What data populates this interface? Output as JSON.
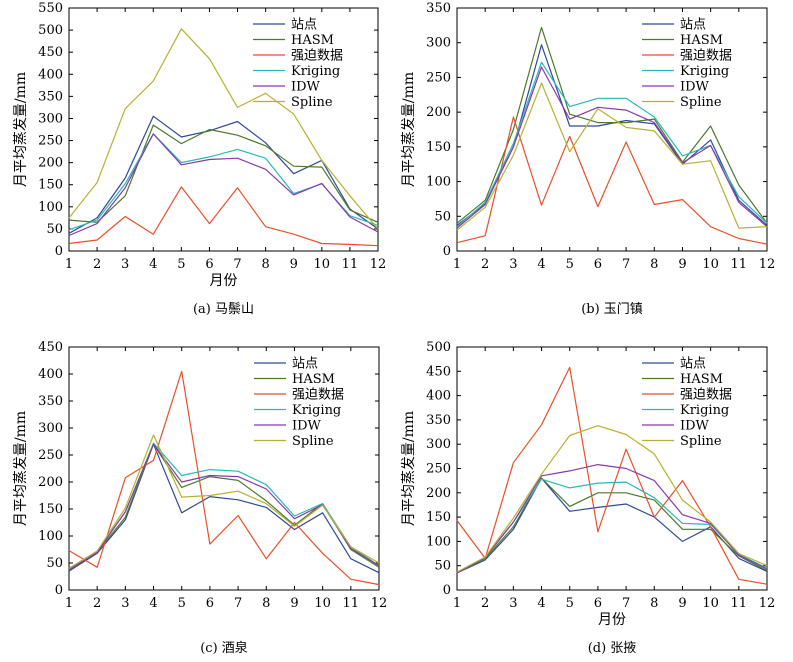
{
  "figure": {
    "colors": {
      "站点": "#2f4a9a",
      "HASM": "#4a7a2a",
      "强迫数据": "#e8502a",
      "Kriging": "#2ab8b8",
      "IDW": "#8a3aa8",
      "Spline": "#b8b030"
    }
  },
  "chart_data": [
    {
      "type": "line",
      "caption": "(a) 马鬃山",
      "xlabel": "月份",
      "ylabel": "月平均蒸发量/mm",
      "x": [
        1,
        2,
        3,
        4,
        5,
        6,
        7,
        8,
        9,
        10,
        11,
        12
      ],
      "xlim": [
        1,
        12
      ],
      "ylim": [
        0,
        550
      ],
      "yticks": [
        0,
        50,
        100,
        150,
        200,
        250,
        300,
        350,
        400,
        450,
        500,
        550
      ],
      "legend_position": "top-right",
      "series": [
        {
          "name": "站点",
          "values": [
            40,
            75,
            165,
            305,
            258,
            272,
            293,
            245,
            175,
            205,
            95,
            50
          ]
        },
        {
          "name": "HASM",
          "values": [
            70,
            65,
            125,
            285,
            243,
            275,
            262,
            238,
            192,
            190,
            93,
            65
          ]
        },
        {
          "name": "强迫数据",
          "values": [
            17,
            25,
            78,
            38,
            145,
            62,
            143,
            55,
            38,
            17,
            15,
            12
          ]
        },
        {
          "name": "Kriging",
          "values": [
            48,
            70,
            152,
            265,
            200,
            213,
            230,
            210,
            130,
            152,
            80,
            58
          ]
        },
        {
          "name": "IDW",
          "values": [
            35,
            62,
            143,
            265,
            195,
            207,
            210,
            185,
            127,
            153,
            77,
            43
          ]
        },
        {
          "name": "Spline",
          "values": [
            75,
            155,
            322,
            385,
            503,
            435,
            325,
            357,
            310,
            205,
            125,
            50
          ]
        }
      ]
    },
    {
      "type": "line",
      "caption": "(b) 玉门镇",
      "xlabel": "",
      "ylabel": "月平均蒸发量/mm",
      "x": [
        1,
        2,
        3,
        4,
        5,
        6,
        7,
        8,
        9,
        10,
        11,
        12
      ],
      "xlim": [
        1,
        12
      ],
      "ylim": [
        0,
        350
      ],
      "yticks": [
        0,
        50,
        100,
        150,
        200,
        250,
        300,
        350
      ],
      "legend_position": "top-right",
      "series": [
        {
          "name": "站点",
          "values": [
            37,
            68,
            150,
            297,
            180,
            180,
            188,
            183,
            125,
            160,
            73,
            37
          ]
        },
        {
          "name": "HASM",
          "values": [
            40,
            73,
            175,
            322,
            197,
            185,
            185,
            190,
            128,
            180,
            95,
            40
          ]
        },
        {
          "name": "强迫数据",
          "values": [
            12,
            22,
            193,
            66,
            165,
            64,
            157,
            67,
            74,
            35,
            18,
            10
          ]
        },
        {
          "name": "Kriging",
          "values": [
            35,
            70,
            155,
            272,
            208,
            220,
            220,
            193,
            137,
            152,
            78,
            40
          ]
        },
        {
          "name": "IDW",
          "values": [
            33,
            67,
            150,
            265,
            190,
            207,
            203,
            185,
            127,
            152,
            70,
            35
          ]
        },
        {
          "name": "Spline",
          "values": [
            30,
            63,
            138,
            242,
            143,
            205,
            178,
            173,
            125,
            130,
            33,
            35
          ]
        }
      ]
    },
    {
      "type": "line",
      "caption": "(c) 酒泉",
      "xlabel": "",
      "ylabel": "月平均蒸发量/mm",
      "x": [
        1,
        2,
        3,
        4,
        5,
        6,
        7,
        8,
        9,
        10,
        11,
        12
      ],
      "xlim": [
        1,
        12
      ],
      "ylim": [
        0,
        450
      ],
      "yticks": [
        0,
        50,
        100,
        150,
        200,
        250,
        300,
        350,
        400,
        450
      ],
      "legend_position": "top-right",
      "series": [
        {
          "name": "站点",
          "values": [
            35,
            68,
            130,
            270,
            143,
            173,
            167,
            153,
            112,
            143,
            58,
            32
          ]
        },
        {
          "name": "HASM",
          "values": [
            37,
            70,
            135,
            270,
            190,
            210,
            203,
            165,
            120,
            160,
            75,
            42
          ]
        },
        {
          "name": "强迫数据",
          "values": [
            73,
            42,
            208,
            240,
            405,
            85,
            138,
            58,
            125,
            68,
            20,
            10
          ]
        },
        {
          "name": "Kriging",
          "values": [
            40,
            72,
            145,
            272,
            212,
            223,
            220,
            195,
            137,
            160,
            80,
            45
          ]
        },
        {
          "name": "IDW",
          "values": [
            38,
            70,
            145,
            270,
            200,
            212,
            210,
            187,
            132,
            158,
            77,
            45
          ]
        },
        {
          "name": "Spline",
          "values": [
            40,
            72,
            152,
            287,
            172,
            175,
            183,
            160,
            118,
            157,
            80,
            50
          ]
        }
      ]
    },
    {
      "type": "line",
      "caption": "(d) 张掖",
      "xlabel": "月份",
      "ylabel": "月平均蒸发量/mm",
      "x": [
        1,
        2,
        3,
        4,
        5,
        6,
        7,
        8,
        9,
        10,
        11,
        12
      ],
      "xlim": [
        1,
        12
      ],
      "ylim": [
        0,
        500
      ],
      "yticks": [
        0,
        50,
        100,
        150,
        200,
        250,
        300,
        350,
        400,
        450,
        500
      ],
      "legend_position": "top-right",
      "series": [
        {
          "name": "站点",
          "values": [
            35,
            62,
            125,
            230,
            162,
            170,
            177,
            150,
            100,
            130,
            65,
            38
          ]
        },
        {
          "name": "HASM",
          "values": [
            35,
            65,
            130,
            230,
            172,
            200,
            200,
            185,
            125,
            125,
            70,
            40
          ]
        },
        {
          "name": "强迫数据",
          "values": [
            143,
            65,
            262,
            340,
            458,
            120,
            290,
            150,
            225,
            130,
            22,
            12
          ]
        },
        {
          "name": "Kriging",
          "values": [
            35,
            67,
            140,
            228,
            210,
            220,
            222,
            190,
            137,
            135,
            73,
            45
          ]
        },
        {
          "name": "IDW",
          "values": [
            35,
            67,
            140,
            235,
            245,
            258,
            250,
            225,
            155,
            137,
            72,
            43
          ]
        },
        {
          "name": "Spline",
          "values": [
            37,
            68,
            148,
            238,
            318,
            338,
            320,
            280,
            185,
            140,
            75,
            50
          ]
        }
      ]
    }
  ]
}
